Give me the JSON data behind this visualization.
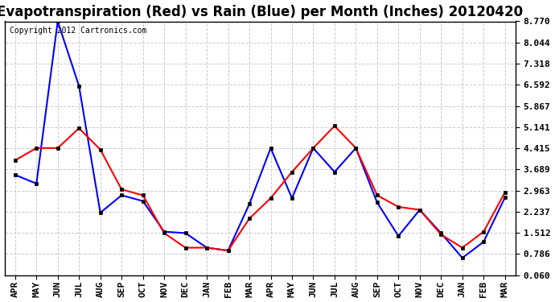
{
  "title": "Evapotranspiration (Red) vs Rain (Blue) per Month (Inches) 20120420",
  "copyright_text": "Copyright 2012 Cartronics.com",
  "months": [
    "APR",
    "MAY",
    "JUN",
    "JUL",
    "AUG",
    "SEP",
    "OCT",
    "NOV",
    "DEC",
    "JAN",
    "FEB",
    "MAR",
    "APR",
    "MAY",
    "JUN",
    "JUL",
    "AUG",
    "SEP",
    "OCT",
    "NOV",
    "DEC",
    "JAN",
    "FEB",
    "MAR"
  ],
  "rain_blue": [
    3.5,
    3.2,
    8.77,
    6.55,
    2.2,
    2.8,
    2.6,
    1.55,
    1.5,
    1.0,
    0.9,
    2.5,
    4.42,
    2.7,
    4.42,
    3.6,
    4.42,
    2.55,
    1.4,
    2.3,
    1.5,
    0.65,
    1.2,
    2.72
  ],
  "et_red": [
    4.0,
    4.42,
    4.42,
    5.1,
    4.37,
    3.0,
    2.8,
    1.5,
    1.0,
    1.0,
    0.9,
    2.0,
    2.7,
    3.6,
    4.42,
    5.18,
    4.42,
    2.8,
    2.4,
    2.3,
    1.45,
    1.0,
    1.55,
    2.9
  ],
  "yticks": [
    0.06,
    0.786,
    1.512,
    2.237,
    2.963,
    3.689,
    4.415,
    5.141,
    5.867,
    6.592,
    7.318,
    8.044,
    8.77
  ],
  "ylim": [
    0.06,
    8.77
  ],
  "bg_color": "#ffffff",
  "plot_bg": "#ffffff",
  "grid_color": "#cccccc",
  "title_fontsize": 12,
  "copyright_fontsize": 7,
  "tick_fontsize": 8,
  "line_color_red": "#ff0000",
  "line_color_blue": "#0000ff",
  "figwidth": 6.9,
  "figheight": 3.75,
  "dpi": 100
}
